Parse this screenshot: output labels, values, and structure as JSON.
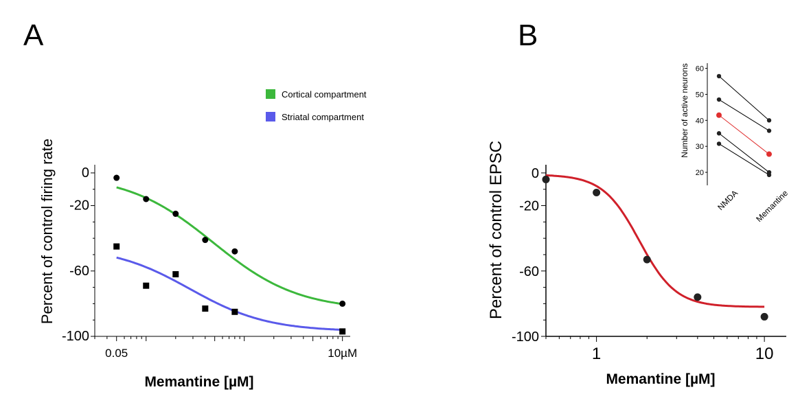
{
  "chart_data": [
    {
      "panel": "A",
      "type": "scatter",
      "xlabel": "Memantine [µM]",
      "ylabel": "Percent of control firing rate",
      "xscale": "log",
      "xlim": [
        0.03,
        12
      ],
      "ylim": [
        -100,
        5
      ],
      "yticks": [
        0,
        -20,
        -60,
        -100
      ],
      "xtick_labels": [
        "0.05",
        "10µM"
      ],
      "xtick_values": [
        0.05,
        10
      ],
      "legend_position": "top-right",
      "series": [
        {
          "name": "Cortical compartment",
          "color": "#3cb83c",
          "marker": "circle",
          "x": [
            0.05,
            0.1,
            0.2,
            0.4,
            0.8,
            10
          ],
          "y": [
            -3,
            -16,
            -25,
            -41,
            -48,
            -80
          ],
          "fit": {
            "top": -1,
            "bottom": -84,
            "ic50": 0.48,
            "hill": 1.0
          }
        },
        {
          "name": "Striatal compartment",
          "color": "#5a5aea",
          "marker": "square",
          "x": [
            0.05,
            0.1,
            0.2,
            0.4,
            0.8,
            10
          ],
          "y": [
            -45,
            -69,
            -62,
            -83,
            -85,
            -97
          ],
          "fit": {
            "top": -45,
            "bottom": -97,
            "ic50": 0.28,
            "hill": 1.1
          }
        }
      ]
    },
    {
      "panel": "B",
      "type": "scatter",
      "xlabel": "Memantine [µM]",
      "ylabel": "Percent of control EPSC",
      "xscale": "log",
      "xlim": [
        0.5,
        13.5
      ],
      "ylim": [
        -100,
        5
      ],
      "yticks": [
        0,
        -20,
        -60,
        -100
      ],
      "xtick_values": [
        1,
        10
      ],
      "series": [
        {
          "name": "",
          "color": "#d0202a",
          "marker": "circle",
          "x": [
            0.5,
            1.0,
            2.0,
            4.0,
            10.0
          ],
          "y": [
            -4,
            -12,
            -53,
            -76,
            -88
          ],
          "fit": {
            "top": -1,
            "bottom": -82,
            "ic50": 1.8,
            "hill": 4.0
          }
        }
      ]
    },
    {
      "panel": "B-inset",
      "type": "line",
      "ylabel": "Number of active neurons",
      "categories": [
        "NMDA",
        "Memantine"
      ],
      "ylim": [
        15,
        62
      ],
      "yticks": [
        20,
        30,
        40,
        50,
        60
      ],
      "pairs": [
        {
          "values": [
            57,
            40
          ],
          "color": "#000000"
        },
        {
          "values": [
            48,
            36
          ],
          "color": "#000000"
        },
        {
          "values": [
            42,
            27
          ],
          "color": "#e03030"
        },
        {
          "values": [
            35,
            20
          ],
          "color": "#000000"
        },
        {
          "values": [
            31,
            19
          ],
          "color": "#000000"
        }
      ]
    }
  ],
  "labels": {
    "panel_a": "A",
    "panel_b": "B"
  },
  "colors": {
    "axis": "#000000",
    "cortical": "#3cb83c",
    "striatal": "#5a5aea",
    "fit_b": "#d0202a",
    "highlight": "#e03030"
  }
}
